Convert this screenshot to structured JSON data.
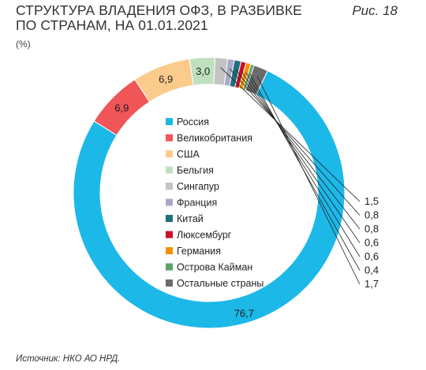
{
  "header": {
    "title_line1": "СТРУКТУРА ВЛАДЕНИЯ ОФЗ, В РАЗБИВКЕ",
    "title_line2": "ПО СТРАНАМ, НА 01.01.2021",
    "unit": "(%)",
    "figure_label": "Рис. 18"
  },
  "footer": {
    "source": "Источник: НКО АО НРД."
  },
  "chart_data": {
    "type": "pie",
    "style": "donut",
    "unit": "%",
    "legend_position": "center",
    "slices": [
      {
        "label": "Великобритания",
        "value": 6.9,
        "value_label": "6,9",
        "color": "#f05558"
      },
      {
        "label": "США",
        "value": 6.9,
        "value_label": "6,9",
        "color": "#fbcb8c"
      },
      {
        "label": "Бельгия",
        "value": 3.0,
        "value_label": "3,0",
        "color": "#bfe0c0"
      },
      {
        "label": "Сингапур",
        "value": 1.5,
        "value_label": "1,5",
        "color": "#c3c3c3"
      },
      {
        "label": "Франция",
        "value": 0.8,
        "value_label": "0,8",
        "color": "#a9a9c8"
      },
      {
        "label": "Китай",
        "value": 0.8,
        "value_label": "0,8",
        "color": "#1f6f7c"
      },
      {
        "label": "Люксембург",
        "value": 0.6,
        "value_label": "0,6",
        "color": "#c8102e"
      },
      {
        "label": "Германия",
        "value": 0.6,
        "value_label": "0,6",
        "color": "#f39200"
      },
      {
        "label": "Острова Кайман",
        "value": 0.4,
        "value_label": "0,4",
        "color": "#5ca36b"
      },
      {
        "label": "Остальные страны",
        "value": 1.7,
        "value_label": "1,7",
        "color": "#6b6b6b"
      },
      {
        "label": "Россия",
        "value": 76.7,
        "value_label": "76,7",
        "color": "#1cb8e8"
      }
    ],
    "legend_order": [
      "Россия",
      "Великобритания",
      "США",
      "Бельгия",
      "Сингапур",
      "Франция",
      "Китай",
      "Люксембург",
      "Германия",
      "Острова Кайман",
      "Остальные страны"
    ]
  }
}
